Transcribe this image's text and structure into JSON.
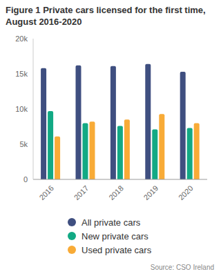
{
  "chart_data": {
    "type": "bar",
    "title": "Figure 1 Private cars licensed for the first time, August 2016-2020",
    "source": "Source: CSO Ireland",
    "categories": [
      "2016",
      "2017",
      "2018",
      "2019",
      "2020"
    ],
    "series": [
      {
        "name": "All private cars",
        "color": "#3f4f80",
        "values": [
          15800,
          16200,
          16100,
          16400,
          15300
        ]
      },
      {
        "name": "New private cars",
        "color": "#12a984",
        "values": [
          9700,
          8000,
          7600,
          7100,
          7300
        ]
      },
      {
        "name": "Used private cars",
        "color": "#f8ab37",
        "values": [
          6100,
          8200,
          8500,
          9300,
          8000
        ]
      }
    ],
    "ylim": [
      0,
      20000
    ],
    "yticks": [
      0,
      {
        "value": 5000,
        "label": "5k"
      },
      {
        "value": 10000,
        "label": "10k"
      },
      {
        "value": 15000,
        "label": "15k"
      },
      {
        "value": 20000,
        "label": "20k"
      }
    ],
    "grid": false,
    "legend": "bottom"
  }
}
